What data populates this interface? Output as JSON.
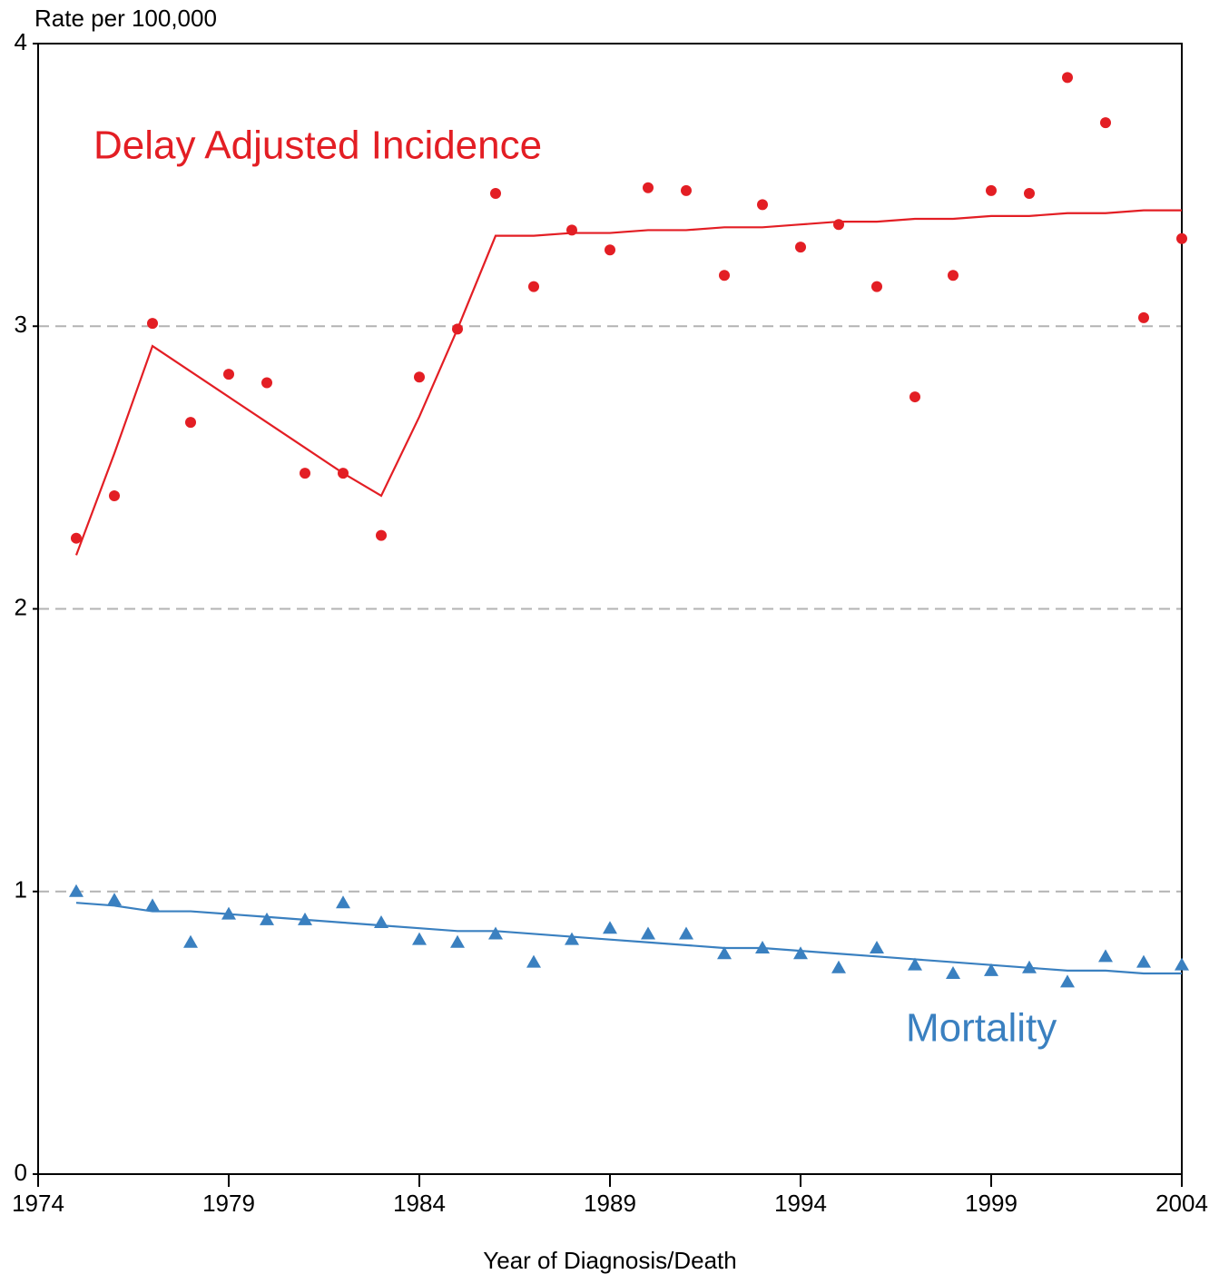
{
  "chart_data": {
    "type": "scatter",
    "ylabel": "Rate per 100,000",
    "xlabel": "Year of Diagnosis/Death",
    "x": [
      1975,
      1976,
      1977,
      1978,
      1979,
      1980,
      1981,
      1982,
      1983,
      1984,
      1985,
      1986,
      1987,
      1988,
      1989,
      1990,
      1991,
      1992,
      1993,
      1994,
      1995,
      1996,
      1997,
      1998,
      1999,
      2000,
      2001,
      2002,
      2003,
      2004
    ],
    "series": [
      {
        "name": "Delay Adjusted Incidence",
        "color": "#e31e24",
        "marker": "circle",
        "values": [
          2.25,
          2.4,
          3.01,
          2.66,
          2.83,
          2.8,
          2.48,
          2.48,
          2.26,
          2.82,
          2.99,
          3.47,
          3.14,
          3.34,
          3.27,
          3.49,
          3.48,
          3.18,
          3.43,
          3.28,
          3.36,
          3.14,
          2.75,
          3.18,
          3.48,
          3.47,
          3.88,
          3.72,
          3.03,
          3.31
        ],
        "fit": [
          2.19,
          2.55,
          2.93,
          2.84,
          2.75,
          2.66,
          2.57,
          2.48,
          2.4,
          2.68,
          2.99,
          3.32,
          3.32,
          3.33,
          3.33,
          3.34,
          3.34,
          3.35,
          3.35,
          3.36,
          3.37,
          3.37,
          3.38,
          3.38,
          3.39,
          3.39,
          3.4,
          3.4,
          3.41,
          3.41
        ]
      },
      {
        "name": "Mortality",
        "color": "#3a80c0",
        "marker": "triangle",
        "values": [
          1.0,
          0.97,
          0.95,
          0.82,
          0.92,
          0.9,
          0.9,
          0.96,
          0.89,
          0.83,
          0.82,
          0.85,
          0.75,
          0.83,
          0.87,
          0.85,
          0.85,
          0.78,
          0.8,
          0.78,
          0.73,
          0.8,
          0.74,
          0.71,
          0.72,
          0.73,
          0.68,
          0.77,
          0.75,
          0.74
        ],
        "fit": [
          0.96,
          0.95,
          0.93,
          0.93,
          0.92,
          0.91,
          0.9,
          0.89,
          0.88,
          0.87,
          0.86,
          0.86,
          0.85,
          0.84,
          0.83,
          0.82,
          0.81,
          0.8,
          0.8,
          0.79,
          0.78,
          0.77,
          0.76,
          0.75,
          0.74,
          0.73,
          0.72,
          0.72,
          0.71,
          0.71
        ]
      }
    ],
    "xlim": [
      1974,
      2004
    ],
    "xticks": [
      1974,
      1979,
      1984,
      1989,
      1994,
      1999,
      2004
    ],
    "ylim": [
      0,
      4
    ],
    "yticks": [
      0,
      1,
      2,
      3,
      4
    ],
    "grid": true
  }
}
